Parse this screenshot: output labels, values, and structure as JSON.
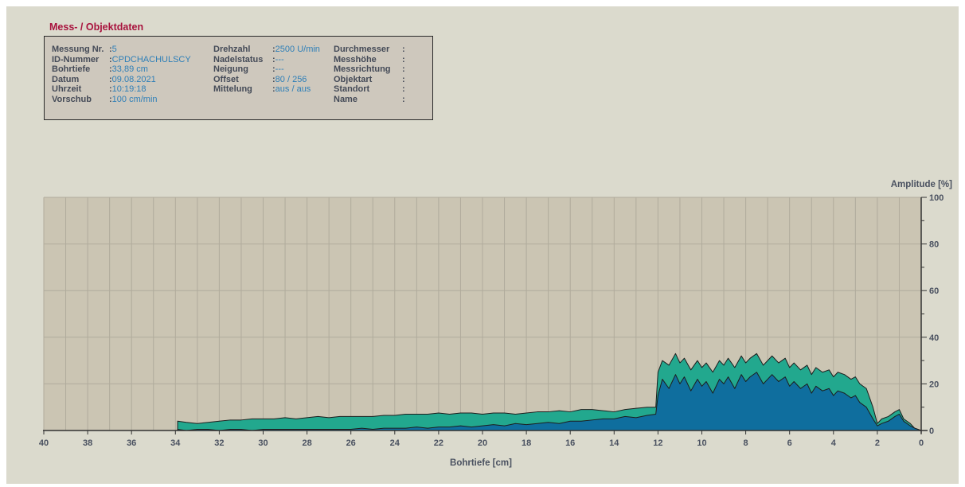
{
  "panel": {
    "title": "Mess- / Objektdaten",
    "col1": [
      {
        "label": "Messung Nr.",
        "value": "5"
      },
      {
        "label": "ID-Nummer",
        "value": "CPDCHACHULSCY"
      },
      {
        "label": "Bohrtiefe",
        "value": "33,89 cm"
      },
      {
        "label": "Datum",
        "value": "09.08.2021"
      },
      {
        "label": "Uhrzeit",
        "value": "10:19:18"
      },
      {
        "label": "Vorschub",
        "value": "100 cm/min"
      }
    ],
    "col2": [
      {
        "label": "Drehzahl",
        "value": "2500 U/min"
      },
      {
        "label": "Nadelstatus",
        "value": "---"
      },
      {
        "label": "Neigung",
        "value": "---"
      },
      {
        "label": "Offset",
        "value": "80 / 256"
      },
      {
        "label": "Mittelung",
        "value": "aus / aus"
      }
    ],
    "col3": [
      {
        "label": "Durchmesser",
        "value": ""
      },
      {
        "label": "Messhöhe",
        "value": ""
      },
      {
        "label": "Messrichtung",
        "value": ""
      },
      {
        "label": "Objektart",
        "value": ""
      },
      {
        "label": "Standort",
        "value": ""
      },
      {
        "label": "Name",
        "value": ""
      }
    ]
  },
  "chart_data": {
    "type": "area",
    "xlabel": "Bohrtiefe [cm]",
    "ylabel": "Amplitude [%]",
    "xlim": [
      40,
      0
    ],
    "ylim": [
      0,
      100
    ],
    "x_ticks": [
      40,
      38,
      36,
      34,
      32,
      30,
      28,
      26,
      24,
      22,
      20,
      18,
      16,
      14,
      12,
      10,
      8,
      6,
      4,
      2,
      0
    ],
    "y_ticks": [
      0,
      20,
      40,
      60,
      80,
      100
    ],
    "grid": true,
    "colors": {
      "plot_bg": "#cbc5b3",
      "grid": "#b0ab9c",
      "feed": "#22a88e",
      "drill": "#0f6e9e",
      "line": "#1d1d1d"
    },
    "series": [
      {
        "key": "feed",
        "x": [
          33.9,
          33.5,
          33,
          32.5,
          32,
          31.5,
          31,
          30.5,
          30,
          29.5,
          29,
          28.5,
          28,
          27.5,
          27,
          26.5,
          26,
          25.5,
          25,
          24.5,
          24,
          23.5,
          23,
          22.5,
          22,
          21.5,
          21,
          20.5,
          20,
          19.5,
          19,
          18.5,
          18,
          17.5,
          17,
          16.5,
          16,
          15.5,
          15,
          14.5,
          14,
          13.5,
          13,
          12.5,
          12.1,
          12,
          11.8,
          11.5,
          11.2,
          11,
          10.8,
          10.5,
          10.2,
          10,
          9.8,
          9.5,
          9.2,
          9,
          8.8,
          8.5,
          8.2,
          8,
          7.8,
          7.5,
          7.2,
          7,
          6.8,
          6.5,
          6.2,
          6,
          5.8,
          5.5,
          5.2,
          5,
          4.8,
          4.5,
          4.2,
          4,
          3.8,
          3.5,
          3.2,
          3,
          2.8,
          2.5,
          2.2,
          2,
          1.8,
          1.5,
          1.2,
          1,
          0.8,
          0.5,
          0.3,
          0
        ],
        "y": [
          4,
          3.5,
          3,
          3.5,
          4,
          4.5,
          4.5,
          5,
          5,
          5,
          5.5,
          5,
          5.5,
          6,
          5.5,
          6,
          6,
          6,
          6,
          6.5,
          6.5,
          7,
          7,
          7,
          7.5,
          7,
          7.5,
          7.5,
          7,
          7.5,
          7.5,
          7,
          7.5,
          8,
          8,
          8.5,
          8,
          9,
          9,
          8.5,
          8,
          9,
          9.5,
          10,
          10,
          25,
          30,
          28,
          33,
          29,
          31,
          26,
          30,
          27,
          29,
          25,
          30,
          28,
          31,
          27,
          32,
          29,
          31,
          33,
          28,
          30,
          32,
          29,
          31,
          27,
          29,
          26,
          28,
          24,
          27,
          25,
          26,
          23,
          25,
          24,
          22,
          23,
          20,
          18,
          10,
          3,
          5,
          6,
          8,
          9,
          5,
          3,
          1,
          0
        ]
      },
      {
        "key": "drill",
        "x": [
          33.9,
          33.5,
          33,
          32.5,
          32,
          31.5,
          31,
          30.5,
          30,
          29.5,
          29,
          28.5,
          28,
          27.5,
          27,
          26.5,
          26,
          25.5,
          25,
          24.5,
          24,
          23.5,
          23,
          22.5,
          22,
          21.5,
          21,
          20.5,
          20,
          19.5,
          19,
          18.5,
          18,
          17.5,
          17,
          16.5,
          16,
          15.5,
          15,
          14.5,
          14,
          13.5,
          13,
          12.5,
          12.1,
          12,
          11.8,
          11.5,
          11.2,
          11,
          10.8,
          10.5,
          10.2,
          10,
          9.8,
          9.5,
          9.2,
          9,
          8.8,
          8.5,
          8.2,
          8,
          7.8,
          7.5,
          7.2,
          7,
          6.8,
          6.5,
          6.2,
          6,
          5.8,
          5.5,
          5.2,
          5,
          4.8,
          4.5,
          4.2,
          4,
          3.8,
          3.5,
          3.2,
          3,
          2.8,
          2.5,
          2.2,
          2,
          1.8,
          1.5,
          1.2,
          1,
          0.8,
          0.5,
          0.3,
          0
        ],
        "y": [
          0.5,
          0,
          0.5,
          0.5,
          0,
          0.5,
          0.5,
          0,
          0.5,
          0.5,
          0.5,
          0.5,
          0.5,
          0.5,
          0.5,
          0.5,
          0.5,
          1,
          0.5,
          1,
          1,
          1,
          1.5,
          1,
          1.5,
          1.5,
          2,
          1.5,
          2,
          2.5,
          2,
          3,
          2.5,
          3,
          3.5,
          3,
          4,
          4,
          4.5,
          5,
          5,
          6,
          5.5,
          6.5,
          7,
          15,
          22,
          18,
          24,
          20,
          23,
          17,
          22,
          19,
          21,
          16,
          22,
          20,
          23,
          18,
          24,
          21,
          23,
          25,
          20,
          22,
          24,
          21,
          23,
          19,
          21,
          18,
          20,
          16,
          19,
          17,
          18,
          15,
          17,
          16,
          14,
          15,
          12,
          10,
          5,
          2,
          3,
          4,
          6,
          7,
          4,
          2,
          1,
          0
        ]
      }
    ]
  }
}
